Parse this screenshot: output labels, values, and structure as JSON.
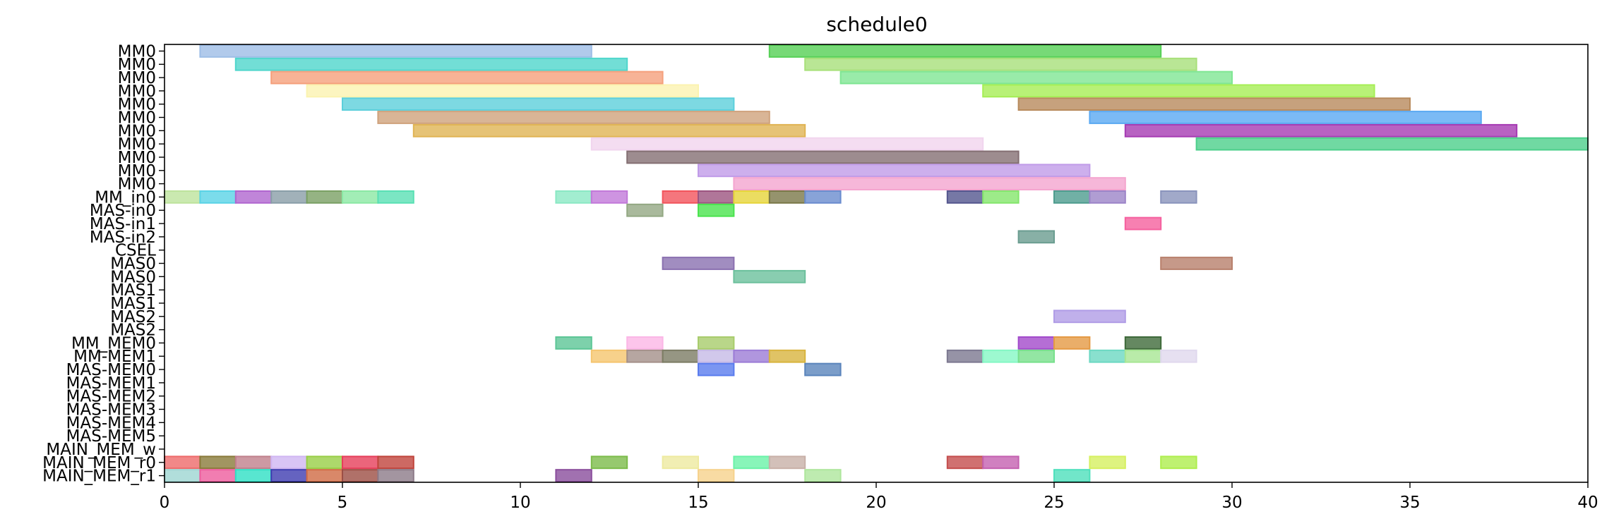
{
  "chart_data": {
    "type": "gantt",
    "title": "schedule0",
    "xlabel": "",
    "ylabel": "",
    "xlim": [
      0,
      40
    ],
    "x_ticks": [
      0,
      5,
      10,
      15,
      20,
      25,
      30,
      35,
      40
    ],
    "grid": false,
    "rows": [
      "MM0",
      "MM0",
      "MM0",
      "MM0",
      "MM0",
      "MM0",
      "MM0",
      "MM0",
      "MM0",
      "MM0",
      "MM0",
      "MM_in0",
      "MAS-in0",
      "MAS-in1",
      "MAS-in2",
      "CSEL",
      "MAS0",
      "MAS0",
      "MAS1",
      "MAS1",
      "MAS2",
      "MAS2",
      "MM_MEM0",
      "MM-MEM1",
      "MAS-MEM0",
      "MAS-MEM1",
      "MAS-MEM2",
      "MAS-MEM3",
      "MAS-MEM4",
      "MAS-MEM5",
      "MAIN_MEM_w",
      "MAIN_MEM_r0",
      "MAIN_MEM_r1"
    ],
    "tasks": [
      {
        "row": 0,
        "start": 1,
        "end": 12,
        "color": "#9dbde6"
      },
      {
        "row": 0,
        "start": 17,
        "end": 28,
        "color": "#55d055"
      },
      {
        "row": 1,
        "start": 2,
        "end": 13,
        "color": "#4fd6cc"
      },
      {
        "row": 1,
        "start": 18,
        "end": 29,
        "color": "#a8e07a"
      },
      {
        "row": 2,
        "start": 3,
        "end": 14,
        "color": "#f5a07c"
      },
      {
        "row": 2,
        "start": 19,
        "end": 30,
        "color": "#7fe693"
      },
      {
        "row": 3,
        "start": 4,
        "end": 15,
        "color": "#fbf3b0"
      },
      {
        "row": 3,
        "start": 23,
        "end": 34,
        "color": "#a6ee55"
      },
      {
        "row": 4,
        "start": 5,
        "end": 16,
        "color": "#5ccfdb"
      },
      {
        "row": 4,
        "start": 24,
        "end": 35,
        "color": "#b88a5c"
      },
      {
        "row": 5,
        "start": 6,
        "end": 17,
        "color": "#cfa27c"
      },
      {
        "row": 5,
        "start": 26,
        "end": 37,
        "color": "#5aa9f2"
      },
      {
        "row": 6,
        "start": 7,
        "end": 18,
        "color": "#e0b454"
      },
      {
        "row": 6,
        "start": 27,
        "end": 38,
        "color": "#a63bb3"
      },
      {
        "row": 7,
        "start": 12,
        "end": 23,
        "color": "#f1d5ee"
      },
      {
        "row": 7,
        "start": 29,
        "end": 40,
        "color": "#4ccf8b"
      },
      {
        "row": 8,
        "start": 13,
        "end": 24,
        "color": "#846f73"
      },
      {
        "row": 9,
        "start": 15,
        "end": 26,
        "color": "#c09be8"
      },
      {
        "row": 10,
        "start": 16,
        "end": 27,
        "color": "#f4a5cf"
      },
      {
        "row": 11,
        "start": 0,
        "end": 1,
        "color": "#bde39c"
      },
      {
        "row": 11,
        "start": 1,
        "end": 2,
        "color": "#5ad3e6"
      },
      {
        "row": 11,
        "start": 2,
        "end": 3,
        "color": "#b066cf"
      },
      {
        "row": 11,
        "start": 3,
        "end": 4,
        "color": "#8a9ea8"
      },
      {
        "row": 11,
        "start": 4,
        "end": 5,
        "color": "#7aa064"
      },
      {
        "row": 11,
        "start": 5,
        "end": 6,
        "color": "#8be8a4"
      },
      {
        "row": 11,
        "start": 6,
        "end": 7,
        "color": "#5ae0b4"
      },
      {
        "row": 11,
        "start": 11,
        "end": 12,
        "color": "#8be8c4"
      },
      {
        "row": 11,
        "start": 12,
        "end": 13,
        "color": "#c279d9"
      },
      {
        "row": 11,
        "start": 14,
        "end": 15,
        "color": "#f2545c"
      },
      {
        "row": 11,
        "start": 15,
        "end": 16,
        "color": "#9c5480"
      },
      {
        "row": 11,
        "start": 16,
        "end": 17,
        "color": "#e6d53a"
      },
      {
        "row": 11,
        "start": 17,
        "end": 18,
        "color": "#7a7848"
      },
      {
        "row": 11,
        "start": 18,
        "end": 19,
        "color": "#6a8cce"
      },
      {
        "row": 11,
        "start": 22,
        "end": 23,
        "color": "#54568e"
      },
      {
        "row": 11,
        "start": 23,
        "end": 24,
        "color": "#84e66c"
      },
      {
        "row": 11,
        "start": 25,
        "end": 26,
        "color": "#4e9c8e"
      },
      {
        "row": 11,
        "start": 26,
        "end": 27,
        "color": "#9c84c8"
      },
      {
        "row": 11,
        "start": 28,
        "end": 29,
        "color": "#8a94bc"
      },
      {
        "row": 12,
        "start": 13,
        "end": 14,
        "color": "#93a883"
      },
      {
        "row": 12,
        "start": 15,
        "end": 16,
        "color": "#4ae34e"
      },
      {
        "row": 13,
        "start": 27,
        "end": 28,
        "color": "#f5609e"
      },
      {
        "row": 14,
        "start": 24,
        "end": 25,
        "color": "#6a9c90"
      },
      {
        "row": 16,
        "start": 14,
        "end": 16,
        "color": "#8a70b0"
      },
      {
        "row": 16,
        "start": 28,
        "end": 30,
        "color": "#b8806c"
      },
      {
        "row": 17,
        "start": 16,
        "end": 18,
        "color": "#6cc09c"
      },
      {
        "row": 20,
        "start": 25,
        "end": 27,
        "color": "#b09ce6"
      },
      {
        "row": 22,
        "start": 11,
        "end": 12,
        "color": "#5cc696"
      },
      {
        "row": 22,
        "start": 13,
        "end": 14,
        "color": "#fbb6e6"
      },
      {
        "row": 22,
        "start": 15,
        "end": 16,
        "color": "#a8cc6c"
      },
      {
        "row": 22,
        "start": 24,
        "end": 25,
        "color": "#a24acb"
      },
      {
        "row": 22,
        "start": 25,
        "end": 26,
        "color": "#e59a44"
      },
      {
        "row": 22,
        "start": 27,
        "end": 28,
        "color": "#3e6a3a"
      },
      {
        "row": 23,
        "start": 12,
        "end": 13,
        "color": "#f5c56e"
      },
      {
        "row": 23,
        "start": 13,
        "end": 14,
        "color": "#a4908a"
      },
      {
        "row": 23,
        "start": 14,
        "end": 15,
        "color": "#7c7c64"
      },
      {
        "row": 23,
        "start": 15,
        "end": 16,
        "color": "#c6bae6"
      },
      {
        "row": 23,
        "start": 16,
        "end": 17,
        "color": "#9c7cd6"
      },
      {
        "row": 23,
        "start": 17,
        "end": 18,
        "color": "#d8b43e"
      },
      {
        "row": 23,
        "start": 22,
        "end": 23,
        "color": "#7c7890"
      },
      {
        "row": 23,
        "start": 23,
        "end": 24,
        "color": "#84f7c4"
      },
      {
        "row": 23,
        "start": 24,
        "end": 25,
        "color": "#78e08c"
      },
      {
        "row": 23,
        "start": 26,
        "end": 27,
        "color": "#6cd8c2"
      },
      {
        "row": 23,
        "start": 27,
        "end": 28,
        "color": "#a8e694"
      },
      {
        "row": 23,
        "start": 28,
        "end": 29,
        "color": "#e0d8ee"
      },
      {
        "row": 24,
        "start": 15,
        "end": 16,
        "color": "#5a7cee"
      },
      {
        "row": 24,
        "start": 18,
        "end": 19,
        "color": "#5a84bc"
      },
      {
        "row": 31,
        "start": 0,
        "end": 1,
        "color": "#ee6a6a"
      },
      {
        "row": 31,
        "start": 1,
        "end": 2,
        "color": "#8a7a3a"
      },
      {
        "row": 31,
        "start": 2,
        "end": 3,
        "color": "#c0808c"
      },
      {
        "row": 31,
        "start": 3,
        "end": 4,
        "color": "#d0b6f2"
      },
      {
        "row": 31,
        "start": 4,
        "end": 5,
        "color": "#98ce46"
      },
      {
        "row": 31,
        "start": 5,
        "end": 6,
        "color": "#e63e5a"
      },
      {
        "row": 31,
        "start": 6,
        "end": 7,
        "color": "#c0443c"
      },
      {
        "row": 31,
        "start": 12,
        "end": 13,
        "color": "#7cbc4a"
      },
      {
        "row": 31,
        "start": 14,
        "end": 15,
        "color": "#eeeaa0"
      },
      {
        "row": 31,
        "start": 16,
        "end": 17,
        "color": "#6af2a8"
      },
      {
        "row": 31,
        "start": 17,
        "end": 18,
        "color": "#c8b0a8"
      },
      {
        "row": 31,
        "start": 22,
        "end": 23,
        "color": "#c44e4e"
      },
      {
        "row": 31,
        "start": 23,
        "end": 24,
        "color": "#c460b0"
      },
      {
        "row": 31,
        "start": 26,
        "end": 27,
        "color": "#d6f060"
      },
      {
        "row": 31,
        "start": 28,
        "end": 29,
        "color": "#aeee4e"
      },
      {
        "row": 32,
        "start": 0,
        "end": 1,
        "color": "#9ed6d2"
      },
      {
        "row": 32,
        "start": 1,
        "end": 2,
        "color": "#ee5c9e"
      },
      {
        "row": 32,
        "start": 2,
        "end": 3,
        "color": "#2ee0c4"
      },
      {
        "row": 32,
        "start": 3,
        "end": 4,
        "color": "#3e3cb0"
      },
      {
        "row": 32,
        "start": 4,
        "end": 5,
        "color": "#d06a44"
      },
      {
        "row": 32,
        "start": 5,
        "end": 6,
        "color": "#9c4e44"
      },
      {
        "row": 32,
        "start": 6,
        "end": 7,
        "color": "#8c7a88"
      },
      {
        "row": 32,
        "start": 11,
        "end": 12,
        "color": "#8a4e9c"
      },
      {
        "row": 32,
        "start": 15,
        "end": 16,
        "color": "#f6d28c"
      },
      {
        "row": 32,
        "start": 18,
        "end": 19,
        "color": "#aee69c"
      },
      {
        "row": 32,
        "start": 25,
        "end": 26,
        "color": "#4ee0bc"
      }
    ]
  }
}
